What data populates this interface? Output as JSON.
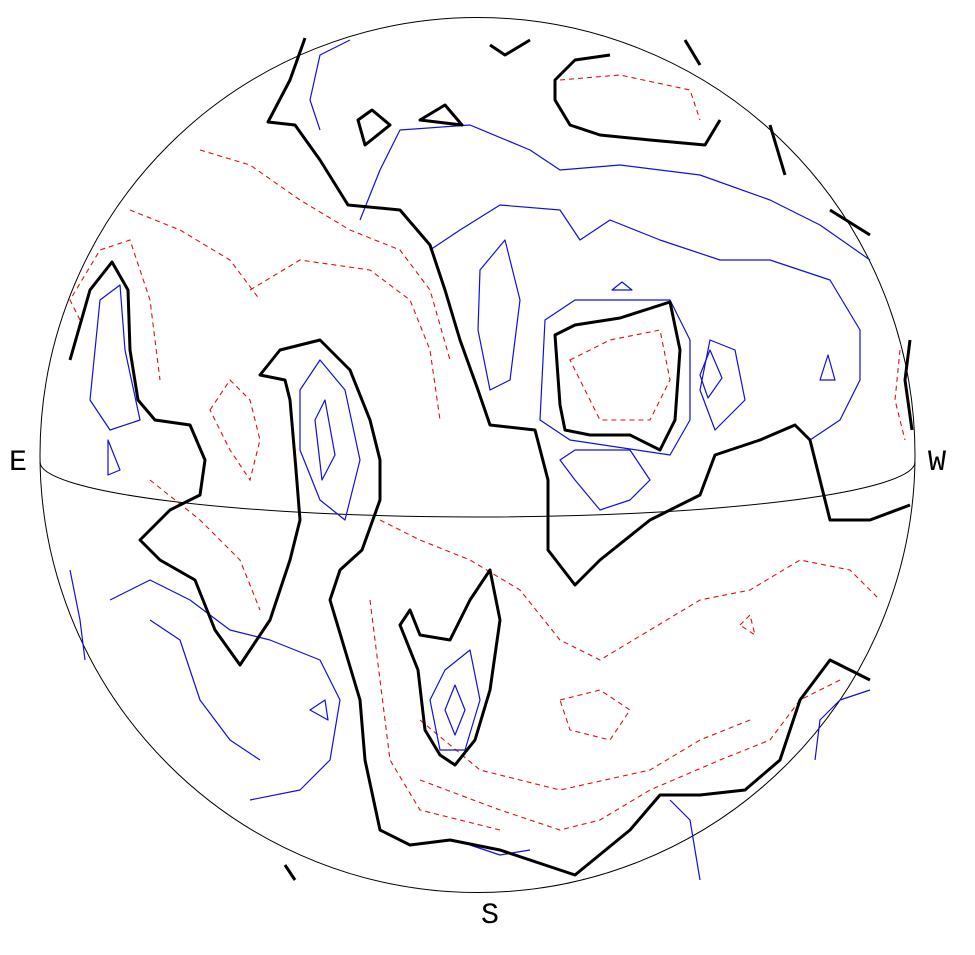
{
  "labels": {
    "east": "E",
    "west": "W",
    "south": "S"
  }
}
